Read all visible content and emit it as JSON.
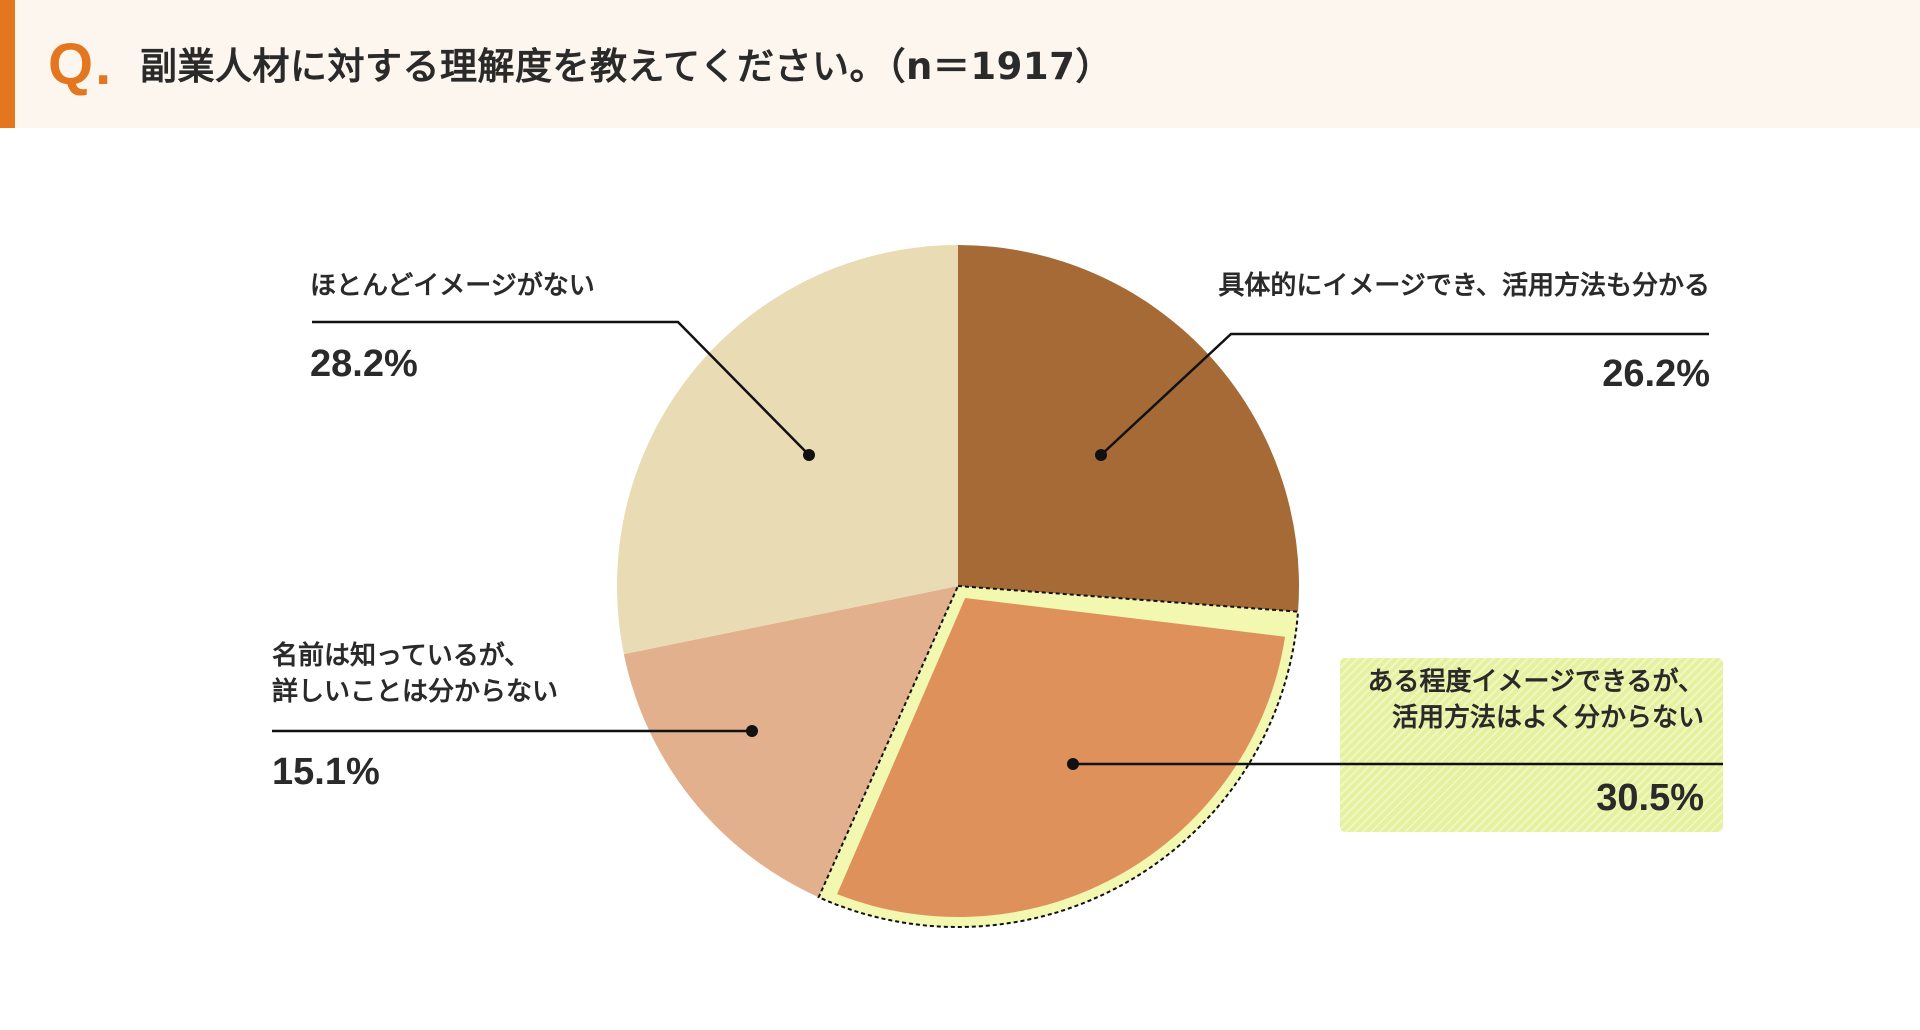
{
  "header": {
    "q_mark": "Q.",
    "title": "副業人材に対する理解度を教えてください。（n＝1917）",
    "accent_color": "#e57620",
    "background_color": "#fdf6ee"
  },
  "labels": {
    "top_left": {
      "text": "ほとんどイメージがない",
      "pct": "28.2%"
    },
    "top_right": {
      "text": "具体的にイメージでき、活用方法も分かる",
      "pct": "26.2%"
    },
    "bottom_left": {
      "line1": "名前は知っているが、",
      "line2": "詳しいことは分からない",
      "pct": "15.1%"
    },
    "bottom_right": {
      "line1": "ある程度イメージできるが、",
      "line2": "活用方法はよく分からない",
      "pct": "30.5%"
    }
  },
  "chart_data": {
    "type": "pie",
    "title": "副業人材に対する理解度を教えてください。（n＝1917）",
    "n": 1917,
    "start_angle": "12 o'clock, clockwise",
    "categories": [
      "具体的にイメージでき、活用方法も分かる",
      "ある程度イメージできるが、活用方法はよく分からない",
      "名前は知っているが、詳しいことは分からない",
      "ほとんどイメージがない"
    ],
    "values": [
      26.2,
      30.5,
      15.1,
      28.2
    ],
    "unit": "%",
    "colors": [
      "#a56a35",
      "#df915b",
      "#e3b08e",
      "#e9dcb5"
    ],
    "highlighted": "ある程度イメージできるが、活用方法はよく分からない",
    "highlight_colors": {
      "outline": "#f2f8b0",
      "label_box": "#e6f1a0"
    },
    "legend": "none (direct labels with leader lines)"
  }
}
